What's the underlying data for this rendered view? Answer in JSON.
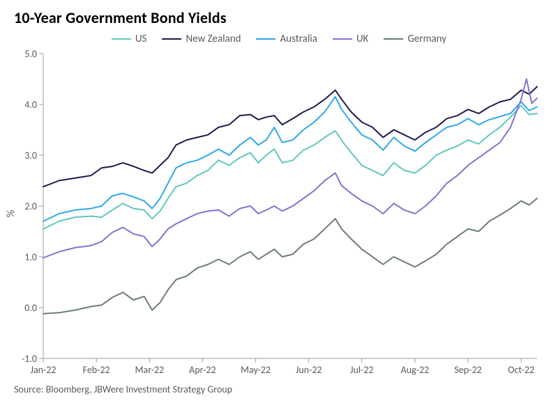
{
  "chart": {
    "type": "line",
    "title": "10-Year Government Bond Yields",
    "title_fontsize": 22,
    "title_fontweight": 700,
    "background_color": "#ffffff",
    "axis_color": "#9e9e9e",
    "text_color": "#5a5a5a",
    "label_fontsize": 15,
    "tick_fontsize": 14,
    "line_width": 2,
    "ylabel": "%",
    "ylim": [
      -1.0,
      5.0
    ],
    "ytick_step": 1.0,
    "ytick_labels": [
      "-1.0",
      "0.0",
      "1.0",
      "2.0",
      "3.0",
      "4.0",
      "5.0"
    ],
    "x_categories": [
      "Jan-22",
      "Feb-22",
      "Mar-22",
      "Apr-22",
      "May-22",
      "Jun-22",
      "Jul-22",
      "Aug-22",
      "Sep-22",
      "Oct-22"
    ],
    "x_domain": [
      0,
      9.3
    ],
    "legend_position": "top-center",
    "source": "Source: Bloomberg, JBWere Investment Strategy Group",
    "series": [
      {
        "name": "US",
        "color": "#5fc7c0",
        "x": [
          0,
          0.3,
          0.6,
          0.9,
          1.1,
          1.3,
          1.5,
          1.7,
          1.9,
          2.05,
          2.2,
          2.35,
          2.5,
          2.7,
          2.9,
          3.1,
          3.3,
          3.5,
          3.7,
          3.9,
          4.05,
          4.2,
          4.35,
          4.5,
          4.7,
          4.9,
          5.1,
          5.3,
          5.5,
          5.65,
          5.8,
          6.0,
          6.2,
          6.4,
          6.6,
          6.8,
          7.0,
          7.2,
          7.4,
          7.6,
          7.8,
          8.0,
          8.2,
          8.4,
          8.6,
          8.8,
          9.0,
          9.15,
          9.3
        ],
        "y": [
          1.55,
          1.7,
          1.78,
          1.8,
          1.78,
          1.92,
          2.05,
          1.95,
          1.92,
          1.75,
          1.9,
          2.15,
          2.38,
          2.45,
          2.6,
          2.7,
          2.9,
          2.8,
          2.95,
          3.05,
          2.85,
          3.0,
          3.12,
          2.85,
          2.9,
          3.1,
          3.2,
          3.35,
          3.48,
          3.25,
          3.05,
          2.8,
          2.7,
          2.6,
          2.85,
          2.7,
          2.65,
          2.8,
          3.0,
          3.1,
          3.18,
          3.3,
          3.22,
          3.4,
          3.55,
          3.75,
          3.98,
          3.8,
          3.82
        ]
      },
      {
        "name": "New Zealand",
        "color": "#1f1a4d",
        "x": [
          0,
          0.3,
          0.6,
          0.9,
          1.1,
          1.3,
          1.5,
          1.7,
          1.9,
          2.05,
          2.2,
          2.35,
          2.5,
          2.7,
          2.9,
          3.1,
          3.3,
          3.5,
          3.7,
          3.9,
          4.05,
          4.2,
          4.35,
          4.5,
          4.7,
          4.9,
          5.1,
          5.3,
          5.5,
          5.62,
          5.8,
          6.0,
          6.2,
          6.4,
          6.6,
          6.8,
          7.0,
          7.2,
          7.4,
          7.6,
          7.8,
          8.0,
          8.2,
          8.4,
          8.6,
          8.8,
          9.0,
          9.15,
          9.3
        ],
        "y": [
          2.38,
          2.5,
          2.55,
          2.6,
          2.75,
          2.78,
          2.85,
          2.78,
          2.7,
          2.65,
          2.8,
          2.95,
          3.2,
          3.3,
          3.35,
          3.4,
          3.55,
          3.6,
          3.78,
          3.8,
          3.7,
          3.75,
          3.78,
          3.6,
          3.72,
          3.85,
          3.95,
          4.1,
          4.28,
          4.1,
          3.85,
          3.65,
          3.55,
          3.35,
          3.5,
          3.4,
          3.3,
          3.45,
          3.55,
          3.72,
          3.78,
          3.9,
          3.82,
          3.95,
          4.05,
          4.1,
          4.28,
          4.2,
          4.35
        ]
      },
      {
        "name": "Australia",
        "color": "#2fa8e6",
        "x": [
          0,
          0.3,
          0.6,
          0.9,
          1.1,
          1.3,
          1.5,
          1.7,
          1.9,
          2.05,
          2.2,
          2.35,
          2.5,
          2.7,
          2.9,
          3.1,
          3.3,
          3.5,
          3.7,
          3.9,
          4.05,
          4.2,
          4.35,
          4.5,
          4.7,
          4.9,
          5.1,
          5.3,
          5.5,
          5.62,
          5.8,
          6.0,
          6.2,
          6.4,
          6.6,
          6.8,
          7.0,
          7.2,
          7.4,
          7.6,
          7.8,
          8.0,
          8.2,
          8.4,
          8.6,
          8.8,
          9.0,
          9.15,
          9.3
        ],
        "y": [
          1.7,
          1.85,
          1.92,
          1.95,
          2.0,
          2.2,
          2.25,
          2.18,
          2.1,
          1.95,
          2.15,
          2.45,
          2.75,
          2.85,
          2.9,
          3.0,
          3.12,
          3.0,
          3.2,
          3.35,
          3.2,
          3.3,
          3.55,
          3.25,
          3.3,
          3.5,
          3.65,
          3.85,
          4.15,
          3.9,
          3.65,
          3.4,
          3.3,
          3.1,
          3.35,
          3.18,
          3.08,
          3.25,
          3.4,
          3.55,
          3.6,
          3.72,
          3.6,
          3.7,
          3.76,
          3.82,
          4.05,
          3.88,
          3.95
        ]
      },
      {
        "name": "UK",
        "color": "#8a6fd1",
        "x": [
          0,
          0.3,
          0.6,
          0.9,
          1.1,
          1.3,
          1.5,
          1.7,
          1.9,
          2.05,
          2.2,
          2.35,
          2.5,
          2.7,
          2.9,
          3.1,
          3.3,
          3.5,
          3.7,
          3.9,
          4.05,
          4.2,
          4.35,
          4.5,
          4.7,
          4.9,
          5.1,
          5.3,
          5.5,
          5.62,
          5.8,
          6.0,
          6.2,
          6.4,
          6.6,
          6.8,
          7.0,
          7.2,
          7.4,
          7.6,
          7.8,
          8.0,
          8.2,
          8.4,
          8.6,
          8.8,
          9.0,
          9.1,
          9.2,
          9.3
        ],
        "y": [
          0.98,
          1.1,
          1.18,
          1.22,
          1.3,
          1.48,
          1.58,
          1.45,
          1.4,
          1.2,
          1.35,
          1.55,
          1.65,
          1.75,
          1.85,
          1.9,
          1.92,
          1.8,
          1.95,
          2.0,
          1.85,
          1.92,
          2.0,
          1.9,
          2.0,
          2.15,
          2.3,
          2.5,
          2.65,
          2.4,
          2.25,
          2.1,
          2.0,
          1.85,
          2.05,
          1.92,
          1.85,
          2.0,
          2.2,
          2.45,
          2.6,
          2.8,
          2.95,
          3.1,
          3.25,
          3.55,
          4.1,
          4.5,
          4.02,
          4.12
        ]
      },
      {
        "name": "Germany",
        "color": "#6e7b7c",
        "x": [
          0,
          0.3,
          0.6,
          0.9,
          1.1,
          1.3,
          1.5,
          1.7,
          1.9,
          2.05,
          2.2,
          2.35,
          2.5,
          2.7,
          2.9,
          3.1,
          3.3,
          3.5,
          3.7,
          3.9,
          4.05,
          4.2,
          4.35,
          4.5,
          4.7,
          4.9,
          5.1,
          5.3,
          5.5,
          5.62,
          5.8,
          6.0,
          6.2,
          6.4,
          6.6,
          6.8,
          7.0,
          7.2,
          7.4,
          7.6,
          7.8,
          8.0,
          8.2,
          8.4,
          8.6,
          8.8,
          9.0,
          9.15,
          9.3
        ],
        "y": [
          -0.12,
          -0.1,
          -0.05,
          0.02,
          0.05,
          0.2,
          0.3,
          0.15,
          0.22,
          -0.05,
          0.1,
          0.35,
          0.55,
          0.62,
          0.78,
          0.85,
          0.95,
          0.85,
          1.0,
          1.1,
          0.95,
          1.05,
          1.15,
          1.0,
          1.05,
          1.25,
          1.35,
          1.55,
          1.75,
          1.55,
          1.35,
          1.15,
          1.0,
          0.85,
          1.0,
          0.9,
          0.8,
          0.92,
          1.05,
          1.25,
          1.4,
          1.55,
          1.5,
          1.7,
          1.82,
          1.95,
          2.1,
          2.02,
          2.15
        ]
      }
    ]
  }
}
